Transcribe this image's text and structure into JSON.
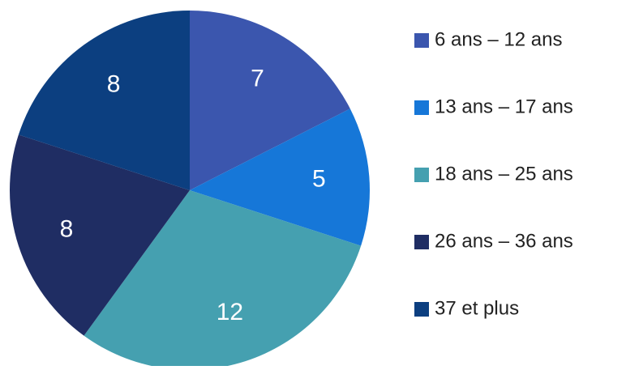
{
  "chart_data": {
    "type": "pie",
    "categories": [
      "6 ans – 12 ans",
      "13 ans – 17 ans",
      "18 ans – 25 ans",
      "26 ans – 36 ans",
      "37 et plus"
    ],
    "values": [
      7,
      5,
      12,
      8,
      8
    ],
    "colors": [
      "#3b56ae",
      "#1677d8",
      "#45a0b0",
      "#1f2d63",
      "#0c3f80"
    ],
    "legend": "right"
  }
}
